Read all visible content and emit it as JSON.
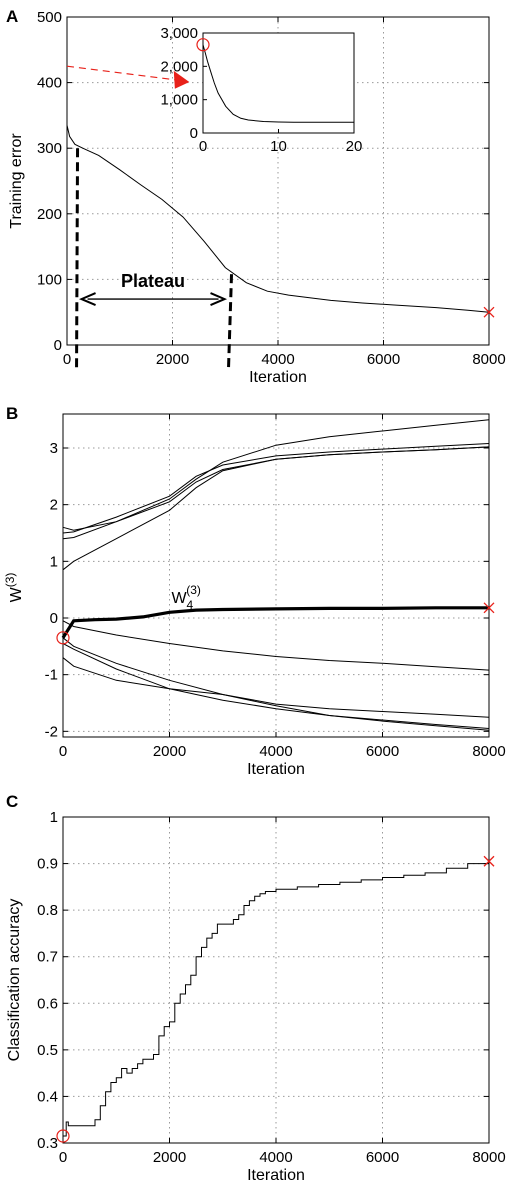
{
  "chart_data": [
    {
      "id": "A",
      "panel_letter": "A",
      "type": "line",
      "xlabel": "Iteration",
      "ylabel": "Training error",
      "xlim": [
        0,
        8000
      ],
      "ylim": [
        0,
        500
      ],
      "xticks": [
        0,
        2000,
        4000,
        6000,
        8000
      ],
      "yticks": [
        0,
        100,
        200,
        300,
        400,
        500
      ],
      "grid": true,
      "series": [
        {
          "x": [
            0,
            50,
            150,
            300,
            600,
            1000,
            1400,
            1800,
            2200,
            2600,
            3000,
            3400,
            3800,
            4200,
            4600,
            5000,
            5600,
            6200,
            7000,
            7600,
            8000
          ],
          "y": [
            335,
            318,
            306,
            300,
            289,
            267,
            244,
            222,
            195,
            158,
            118,
            95,
            82,
            76,
            72,
            68,
            64,
            61,
            57,
            53,
            50
          ]
        }
      ],
      "start_marker": null,
      "end_marker": {
        "x": 8000,
        "y": 50,
        "symbol": "x",
        "color": "#e8211a"
      },
      "annotation": {
        "text": "Plateau",
        "x_start": 200,
        "x_end": 3100,
        "y": 70,
        "line_left_top": 300,
        "line_left_bottom": -35,
        "line_right_top": 108,
        "line_right_bottom": -35
      },
      "red_arrow": {
        "from": [
          0,
          425
        ],
        "to": [
          2300,
          401
        ],
        "color": "#e8211a"
      },
      "inset": {
        "type": "line",
        "xlim": [
          0,
          20
        ],
        "ylim": [
          0,
          3000
        ],
        "xticks": [
          0,
          10,
          20
        ],
        "yticks": [
          0,
          1000,
          2000,
          3000
        ],
        "ytick_labels": [
          "0",
          "1,000",
          "2,000",
          "3,000"
        ],
        "series": [
          {
            "x": [
              0,
              0.3,
              0.6,
              1,
              1.5,
              2,
              3,
              4,
              5,
              6,
              8,
              10,
              12,
              15,
              20
            ],
            "y": [
              2650,
              2400,
              2150,
              1850,
              1500,
              1200,
              800,
              560,
              440,
              390,
              345,
              330,
              325,
              320,
              320
            ]
          }
        ],
        "start_marker": {
          "x": 0,
          "y": 2650,
          "symbol": "o",
          "color": "#e8211a"
        }
      }
    },
    {
      "id": "B",
      "panel_letter": "B",
      "type": "line",
      "xlabel": "Iteration",
      "ylabel": "W",
      "ylabel_sup": "(3)",
      "xlim": [
        0,
        8000
      ],
      "ylim": [
        -2.1,
        3.6
      ],
      "xticks": [
        0,
        2000,
        4000,
        6000,
        8000
      ],
      "yticks": [
        -2,
        -1,
        0,
        1,
        2,
        3
      ],
      "grid": true,
      "series": [
        {
          "x": [
            0,
            200,
            1000,
            2000,
            2500,
            3000,
            4000,
            5000,
            6000,
            7000,
            8000
          ],
          "y": [
            1.6,
            1.55,
            1.7,
            2.1,
            2.45,
            2.75,
            3.05,
            3.2,
            3.3,
            3.4,
            3.5
          ]
        },
        {
          "x": [
            0,
            200,
            1000,
            2000,
            2500,
            3000,
            4000,
            5000,
            6000,
            7000,
            8000
          ],
          "y": [
            1.5,
            1.52,
            1.78,
            2.15,
            2.5,
            2.7,
            2.86,
            2.93,
            2.98,
            3.03,
            3.08
          ]
        },
        {
          "x": [
            0,
            200,
            1000,
            2000,
            2500,
            3000,
            4000,
            5000,
            6000,
            7000,
            8000
          ],
          "y": [
            1.4,
            1.42,
            1.7,
            2.05,
            2.4,
            2.62,
            2.8,
            2.88,
            2.93,
            2.97,
            3.02
          ]
        },
        {
          "x": [
            0,
            200,
            1000,
            2000,
            2500,
            3000,
            4000,
            5000,
            6000,
            7000,
            8000
          ],
          "y": [
            0.85,
            1.0,
            1.4,
            1.9,
            2.3,
            2.6,
            2.8,
            2.88,
            2.93,
            2.97,
            3.02
          ]
        },
        {
          "x": [
            0,
            200,
            1000,
            2000,
            3000,
            4000,
            5000,
            6000,
            7000,
            8000
          ],
          "y": [
            -0.05,
            -0.15,
            -0.3,
            -0.45,
            -0.58,
            -0.68,
            -0.75,
            -0.8,
            -0.86,
            -0.92
          ]
        },
        {
          "x": [
            0,
            200,
            1000,
            2000,
            3000,
            4000,
            5000,
            6000,
            7000,
            8000
          ],
          "y": [
            -0.35,
            -0.5,
            -0.8,
            -1.1,
            -1.35,
            -1.52,
            -1.6,
            -1.65,
            -1.7,
            -1.75
          ]
        },
        {
          "x": [
            0,
            200,
            1000,
            2000,
            3000,
            4000,
            5000,
            6000,
            7000,
            8000
          ],
          "y": [
            -0.45,
            -0.55,
            -0.9,
            -1.25,
            -1.45,
            -1.6,
            -1.72,
            -1.8,
            -1.88,
            -1.95
          ]
        },
        {
          "x": [
            0,
            200,
            1000,
            2000,
            3000,
            4000,
            5000,
            6000,
            7000,
            8000
          ],
          "y": [
            -0.7,
            -0.85,
            -1.1,
            -1.25,
            -1.35,
            -1.55,
            -1.72,
            -1.82,
            -1.9,
            -1.98
          ]
        },
        {
          "name": "W4",
          "bold": true,
          "x": [
            0,
            200,
            600,
            1000,
            1500,
            2000,
            2500,
            3000,
            4000,
            5000,
            6000,
            7000,
            8000
          ],
          "y": [
            -0.35,
            -0.05,
            -0.03,
            -0.02,
            0.02,
            0.1,
            0.14,
            0.15,
            0.16,
            0.17,
            0.17,
            0.18,
            0.18
          ]
        }
      ],
      "series_label": {
        "base": "W",
        "sub": "4",
        "sup": "(3)",
        "x": 2600,
        "y": 0.3
      },
      "start_marker": {
        "x": 0,
        "y": -0.35,
        "symbol": "o",
        "color": "#e8211a"
      },
      "end_marker": {
        "x": 8000,
        "y": 0.18,
        "symbol": "x",
        "color": "#e8211a"
      }
    },
    {
      "id": "C",
      "panel_letter": "C",
      "type": "line",
      "xlabel": "Iteration",
      "ylabel": "Classification accuracy",
      "xlim": [
        0,
        8000
      ],
      "ylim": [
        0.3,
        1.0
      ],
      "xticks": [
        0,
        2000,
        4000,
        6000,
        8000
      ],
      "yticks": [
        0.3,
        0.4,
        0.5,
        0.6,
        0.7,
        0.8,
        0.9,
        1.0
      ],
      "ytick_labels": [
        "0.3",
        "0.4",
        "0.5",
        "0.6",
        "0.7",
        "0.8",
        "0.9",
        "1"
      ],
      "grid": true,
      "series": [
        {
          "x": [
            0,
            60,
            100,
            200,
            300,
            400,
            550,
            600,
            700,
            800,
            900,
            1000,
            1100,
            1200,
            1300,
            1400,
            1500,
            1600,
            1700,
            1800,
            1900,
            2000,
            2100,
            2200,
            2300,
            2400,
            2500,
            2600,
            2700,
            2800,
            2900,
            3000,
            3100,
            3200,
            3300,
            3400,
            3500,
            3600,
            3700,
            3800,
            4000,
            4400,
            4800,
            5200,
            5600,
            6000,
            6400,
            6800,
            7200,
            7600,
            8000
          ],
          "y": [
            0.315,
            0.345,
            0.337,
            0.337,
            0.337,
            0.337,
            0.337,
            0.35,
            0.38,
            0.41,
            0.43,
            0.44,
            0.46,
            0.45,
            0.46,
            0.47,
            0.48,
            0.48,
            0.49,
            0.53,
            0.55,
            0.56,
            0.6,
            0.62,
            0.64,
            0.66,
            0.7,
            0.72,
            0.74,
            0.75,
            0.77,
            0.77,
            0.77,
            0.78,
            0.79,
            0.81,
            0.82,
            0.83,
            0.835,
            0.84,
            0.845,
            0.85,
            0.855,
            0.86,
            0.865,
            0.87,
            0.875,
            0.88,
            0.89,
            0.9,
            0.905
          ]
        }
      ],
      "start_marker": {
        "x": 0,
        "y": 0.315,
        "symbol": "o",
        "color": "#e8211a"
      },
      "end_marker": {
        "x": 8000,
        "y": 0.905,
        "symbol": "x",
        "color": "#e8211a"
      }
    }
  ]
}
